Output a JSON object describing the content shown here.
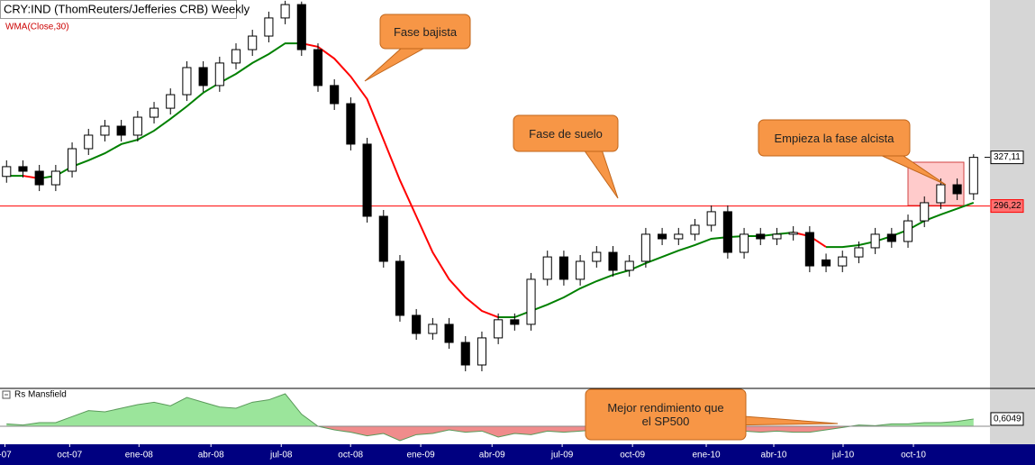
{
  "chart_data": [
    {
      "type": "candlestick",
      "title": "CRY:IND (ThomReuters/Jefferies CRB) Weekly",
      "open": [
        315.0,
        321.2,
        318.3,
        309.7,
        318.3,
        332.6,
        341.2,
        346.9,
        341.2,
        352.6,
        358.3,
        366.9,
        384.1,
        372.7,
        387,
        395.5,
        404.1,
        415.6,
        424.1,
        395.5,
        372.7,
        361.2,
        335.5,
        289.7,
        261.1,
        226.8,
        215.3,
        221.1,
        209.6,
        195.3,
        212.5,
        224,
        221.1,
        249.7,
        263.9,
        249.7,
        261.1,
        266.8,
        255.4,
        261.1,
        278.3,
        275.4,
        278.3,
        284,
        292.6,
        266.8,
        278.3,
        275.4,
        278.3,
        279.4,
        262,
        258.2,
        263.9,
        269.7,
        278.3,
        273.7,
        286.8,
        298.3,
        309.7,
        304
      ],
      "high": [
        325.2,
        325.2,
        322.3,
        322.3,
        336.6,
        345.2,
        350.9,
        350.9,
        356.6,
        362.3,
        370.9,
        388.1,
        388.1,
        391,
        399.5,
        408.1,
        419.6,
        426.5,
        426,
        399.5,
        376.7,
        365.2,
        339.5,
        293.7,
        265.1,
        230.8,
        225.1,
        225.1,
        213.6,
        216.5,
        228,
        228,
        253.7,
        267.9,
        267.9,
        265.1,
        270.8,
        270.8,
        265.1,
        282.3,
        282.3,
        282.3,
        288,
        296.6,
        296.6,
        282.3,
        282.3,
        282.3,
        283.4,
        283.4,
        266,
        267.9,
        273.7,
        282.3,
        282.3,
        290.8,
        302.3,
        313.7,
        313.7,
        329.1
      ],
      "low": [
        311,
        314.3,
        305.7,
        305.7,
        314.3,
        328.6,
        337.2,
        337.2,
        337.2,
        348.6,
        354.3,
        362.9,
        368.7,
        368.7,
        383,
        391.5,
        400.1,
        411.6,
        391.5,
        368.7,
        357.2,
        331.5,
        285.7,
        257.1,
        222.8,
        211.3,
        211.3,
        205.6,
        191.3,
        191.3,
        208.5,
        217.1,
        217.1,
        245.7,
        245.7,
        245.7,
        257.1,
        251.4,
        251.4,
        257.1,
        271.4,
        271.4,
        274.3,
        280,
        262.8,
        262.8,
        271.4,
        271.4,
        274.3,
        254.2,
        254.2,
        254.2,
        259.9,
        265.7,
        269.7,
        269.7,
        282.8,
        294.3,
        300,
        300
      ],
      "close": [
        321.2,
        318.3,
        309.7,
        318.3,
        332.6,
        341.2,
        346.9,
        341.2,
        352.6,
        358.3,
        366.9,
        384.1,
        372.7,
        387,
        395.5,
        404.1,
        415.6,
        424.1,
        395.5,
        372.7,
        361.2,
        335.5,
        289.7,
        261.1,
        226.8,
        215.3,
        221.1,
        209.6,
        195.3,
        212.5,
        224,
        221.1,
        249.7,
        263.9,
        249.7,
        261.1,
        266.8,
        255.4,
        261.1,
        278.3,
        275.4,
        278.3,
        284,
        292.6,
        266.8,
        278.3,
        275.4,
        278.3,
        279.4,
        258.2,
        258.2,
        263.9,
        269.7,
        278.3,
        273.7,
        286.8,
        298.3,
        309.7,
        304,
        327.1
      ],
      "up_color": "#ffffff",
      "down_color": "#000000",
      "overlay": {
        "name": "WMA(Close,30)",
        "rising_color": "#008000",
        "falling_color": "#ff0000",
        "values": [
          315.4,
          315.4,
          313.7,
          315.4,
          321.2,
          325.2,
          329.7,
          335.5,
          338.3,
          344.0,
          351.5,
          359.5,
          368.1,
          374.4,
          380.1,
          387.0,
          392.7,
          399.5,
          399.5,
          397.3,
          389.8,
          378.4,
          364.1,
          338.3,
          312.6,
          289.7,
          266.8,
          249.7,
          238.2,
          229.6,
          225.6,
          225.6,
          229.6,
          233.6,
          238.2,
          243.9,
          248.5,
          252.5,
          255.4,
          259.9,
          263.9,
          267.9,
          271.4,
          275.4,
          276.5,
          277.1,
          277.1,
          278.3,
          279.4,
          277.1,
          270.2,
          270.2,
          271.4,
          273.7,
          277.1,
          281.1,
          286.8,
          290.8,
          294.5,
          298.3
        ]
      },
      "reference_color": "#ff0000",
      "xlim": [
        -0.4,
        60
      ],
      "ylim": [
        181,
        427
      ],
      "yticks": [
        {
          "value": 327.11,
          "label": "327,11"
        },
        {
          "value": 296.22,
          "label": "296,22"
        }
      ],
      "xticks": [
        {
          "value": -0.1,
          "label": "-07"
        },
        {
          "value": 3.85,
          "label": "oct-07"
        },
        {
          "value": 8.08,
          "label": "ene-08"
        },
        {
          "value": 12.47,
          "label": "abr-08"
        },
        {
          "value": 16.76,
          "label": "jul-08"
        },
        {
          "value": 20.99,
          "label": "oct-08"
        },
        {
          "value": 25.27,
          "label": "ene-09"
        },
        {
          "value": 29.62,
          "label": "abr-09"
        },
        {
          "value": 33.9,
          "label": "jul-09"
        },
        {
          "value": 38.19,
          "label": "oct-09"
        },
        {
          "value": 42.69,
          "label": "ene-10"
        },
        {
          "value": 46.81,
          "label": "abr-10"
        },
        {
          "value": 51.04,
          "label": "jul-10"
        },
        {
          "value": 55.33,
          "label": "oct-10"
        }
      ],
      "annotations": [
        "Fase bajista",
        "Fase de suelo",
        "Empieza la fase alcista"
      ]
    },
    {
      "type": "area",
      "title": "Rs Mansfield",
      "values": [
        0.2,
        0.1,
        0.3,
        0.3,
        0.8,
        1.3,
        1.2,
        1.5,
        1.8,
        2.0,
        1.7,
        2.4,
        2.0,
        1.6,
        1.5,
        2.0,
        2.2,
        2.7,
        1.0,
        0.0,
        -0.3,
        -0.5,
        -0.8,
        -0.6,
        -1.2,
        -0.7,
        -0.6,
        -0.3,
        -0.5,
        -0.4,
        -0.9,
        -0.6,
        -0.7,
        -0.4,
        -0.5,
        -0.4,
        -0.3,
        -0.4,
        -0.5,
        -0.3,
        -0.3,
        -0.4,
        -0.4,
        -0.2,
        -0.5,
        -0.4,
        -0.5,
        -0.4,
        -0.5,
        -0.5,
        -0.3,
        -0.1,
        0.1,
        0.05,
        0.2,
        0.2,
        0.3,
        0.3,
        0.4,
        0.6049
      ],
      "value_labels": [
        null,
        null,
        null,
        null,
        null,
        null,
        null,
        null,
        null,
        null,
        null,
        null,
        null,
        null,
        null,
        null,
        null,
        null,
        null,
        null,
        null,
        null,
        null,
        null,
        null,
        null,
        null,
        null,
        null,
        null,
        null,
        null,
        null,
        null,
        null,
        null,
        null,
        null,
        null,
        null,
        null,
        null,
        null,
        null,
        null,
        null,
        null,
        null,
        null,
        null,
        null,
        null,
        null,
        null,
        null,
        null,
        null,
        null,
        null,
        "0,6049"
      ],
      "positive_color": "#9be59b",
      "negative_color": "#f08c8c",
      "xlim": [
        -0.4,
        60
      ],
      "ylim": [
        -1.5,
        3.0
      ],
      "annotations": [
        "Mejor rendimiento que el SP500"
      ]
    }
  ]
}
